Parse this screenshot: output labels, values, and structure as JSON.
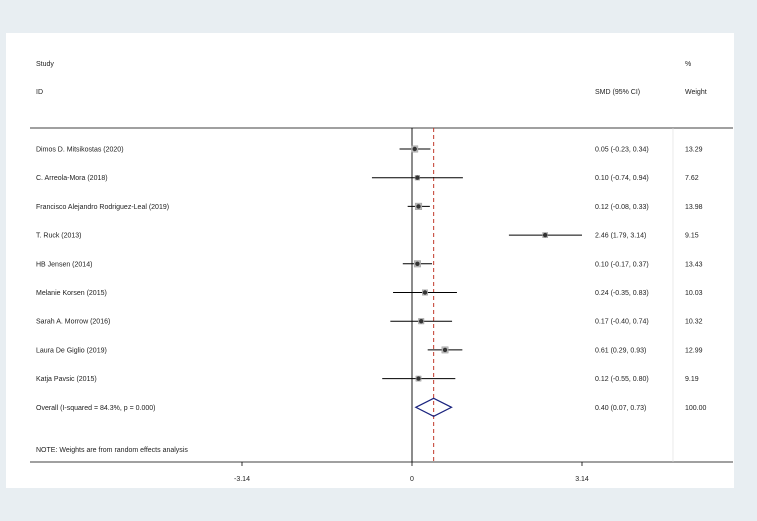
{
  "chart_data": {
    "type": "forest",
    "header": {
      "study_label": "Study",
      "id_label": "ID",
      "effect_label": "SMD (95% CI)",
      "pct_label": "%",
      "weight_label": "Weight"
    },
    "studies": [
      {
        "name": "Dimos D. Mitsikostas (2020)",
        "est": 0.05,
        "lo": -0.23,
        "hi": 0.34,
        "ci_text": "0.05 (-0.23, 0.34)",
        "weight": "13.29"
      },
      {
        "name": "C. Arreola-Mora (2018)",
        "est": 0.1,
        "lo": -0.74,
        "hi": 0.94,
        "ci_text": "0.10 (-0.74, 0.94)",
        "weight": "7.62"
      },
      {
        "name": "Francisco Alejandro Rodriguez-Leal (2019)",
        "est": 0.12,
        "lo": -0.08,
        "hi": 0.33,
        "ci_text": "0.12 (-0.08, 0.33)",
        "weight": "13.98"
      },
      {
        "name": "T. Ruck (2013)",
        "est": 2.46,
        "lo": 1.79,
        "hi": 3.14,
        "ci_text": "2.46 (1.79, 3.14)",
        "weight": "9.15"
      },
      {
        "name": "HB Jensen (2014)",
        "est": 0.1,
        "lo": -0.17,
        "hi": 0.37,
        "ci_text": "0.10 (-0.17, 0.37)",
        "weight": "13.43"
      },
      {
        "name": "Melanie Korsen (2015)",
        "est": 0.24,
        "lo": -0.35,
        "hi": 0.83,
        "ci_text": "0.24 (-0.35, 0.83)",
        "weight": "10.03"
      },
      {
        "name": "Sarah A. Morrow (2016)",
        "est": 0.17,
        "lo": -0.4,
        "hi": 0.74,
        "ci_text": "0.17 (-0.40, 0.74)",
        "weight": "10.32"
      },
      {
        "name": "Laura De Giglio (2019)",
        "est": 0.61,
        "lo": 0.29,
        "hi": 0.93,
        "ci_text": "0.61 (0.29, 0.93)",
        "weight": "12.99"
      },
      {
        "name": "Katja Pavsic (2015)",
        "est": 0.12,
        "lo": -0.55,
        "hi": 0.8,
        "ci_text": "0.12 (-0.55, 0.80)",
        "weight": "9.19"
      }
    ],
    "overall": {
      "name": "Overall  (I-squared = 84.3%, p = 0.000)",
      "est": 0.4,
      "lo": 0.07,
      "hi": 0.73,
      "ci_text": "0.40 (0.07, 0.73)",
      "weight": "100.00"
    },
    "note": "NOTE: Weights are from random effects analysis",
    "x_ticks": [
      {
        "value": -3.14,
        "label": "-3.14"
      },
      {
        "value": 0,
        "label": "0"
      },
      {
        "value": 3.14,
        "label": "3.14"
      }
    ],
    "xlim": [
      -3.14,
      3.14
    ],
    "colors": {
      "point": "#333333",
      "ci_line": "#000000",
      "diamond": "#1a237e",
      "overall_line": "#c0392b",
      "box": "#b8b8b8"
    }
  }
}
